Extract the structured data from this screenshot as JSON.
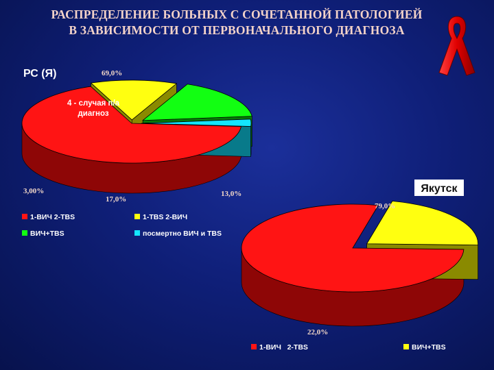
{
  "title": {
    "line1": "РАСПРЕДЕЛЕНИЕ БОЛЬНЫХ С СОЧЕТАННОЙ ПАТОЛОГИЕЙ",
    "line2": "В ЗАВИСИМОСТИ ОТ ПЕРВОНАЧАЛЬНОГО ДИАГНОЗА"
  },
  "logo": {
    "icon": "red-ribbon-icon"
  },
  "chart_data": [
    {
      "type": "pie",
      "title": "РС (Я)",
      "annotation_line1": "4 - случая п/а",
      "annotation_line2": "диагноз",
      "slices": [
        {
          "label": "1-ВИЧ 2-TBS",
          "value": 69.0,
          "display": "69,0%",
          "color": "#ff1414",
          "shade": "#8e0606"
        },
        {
          "label": "1-TBS 2-ВИЧ",
          "value": 13.0,
          "display": "13,0%",
          "color": "#ffff10",
          "shade": "#8a8a00"
        },
        {
          "label": "ВИЧ+TBS",
          "value": 17.0,
          "display": "17,0%",
          "color": "#12ff12",
          "shade": "#087a08"
        },
        {
          "label": "посмертно ВИЧ и TBS",
          "value": 3.0,
          "display": "3,00%",
          "color": "#14e6ff",
          "shade": "#087a8a"
        }
      ],
      "legend": [
        "1-ВИЧ 2-TBS",
        "1-TBS 2-ВИЧ",
        "ВИЧ+TBS",
        "посмертно ВИЧ и TBS"
      ]
    },
    {
      "type": "pie",
      "title": "Якутск",
      "slices": [
        {
          "label": "1-ВИЧ 2-TBS",
          "value": 79.0,
          "display": "79,0%",
          "color": "#ff1414",
          "shade": "#8e0606"
        },
        {
          "label": "ВИЧ+TBS",
          "value": 22.0,
          "display": "22,0%",
          "color": "#ffff10",
          "shade": "#8a8a00"
        }
      ],
      "legend": [
        "1-ВИЧ   2-TBS",
        "ВИЧ+TBS"
      ]
    }
  ]
}
